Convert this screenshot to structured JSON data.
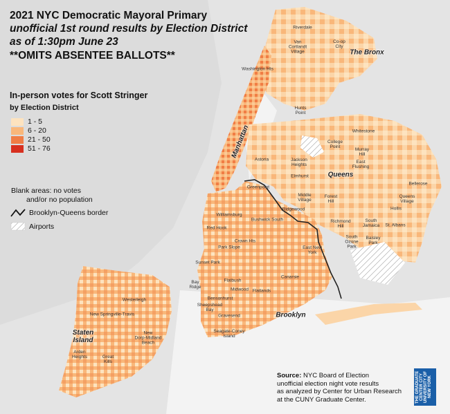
{
  "title": {
    "line1": "2021 NYC Democratic Mayoral Primary",
    "line2": "unofficial 1st round results by Election District",
    "line3": "as of 1:30pm June 23",
    "line4": "**OMITS ABSENTEE BALLOTS**"
  },
  "legend": {
    "title": "In-person votes for Scott Stringer",
    "subtitle": "by Election District",
    "bins": [
      {
        "label": "1 - 5",
        "color": "#fde3bf"
      },
      {
        "label": "6 - 20",
        "color": "#f9b77a"
      },
      {
        "label": "21 - 50",
        "color": "#f07d45"
      },
      {
        "label": "51 - 76",
        "color": "#d7301f"
      }
    ],
    "blank_note_1": "Blank areas: no votes",
    "blank_note_2": "and/or no population",
    "border_label": "Brooklyn-Queens border",
    "airports_label": "Airports"
  },
  "boroughs": {
    "manhattan": "Manhattan",
    "bronx": "The Bronx",
    "queens": "Queens",
    "brooklyn": "Brooklyn",
    "staten_island": "Staten\nIsland"
  },
  "places": {
    "riverdale": "Riverdale",
    "van_cortlandt": "Van\nCortlandt\nVillage",
    "co_op_city": "Co-op\nCity",
    "washington_hts": "Washington Hts",
    "hunts_point": "Hunts\nPoint",
    "whitestone": "Whitestone",
    "college_point": "College\nPoint",
    "murray_hill": "Murray\nHill",
    "east_flushing": "East\nFlushing",
    "astoria": "Astoria",
    "jackson_heights": "Jackson\nHeights",
    "elmhurst": "Elmhurst",
    "bellerose": "Bellerose",
    "queens_village": "Queens\nVillage",
    "hollis": "Hollis",
    "greenpoint": "Greenpoint",
    "middle_village": "Middle\nVillage",
    "forest_hills": "Forest\nHill",
    "ridgewood": "Ridgewood",
    "richmond_hill": "Richmond\nHill",
    "south_jamaica": "South\nJamaica",
    "st_albans": "St. Albans",
    "williamsburg": "Williamsburg",
    "bushwick": "Bushwick South",
    "red_hook": "Red Hook",
    "crown_hts": "Crown Hts",
    "east_new_york": "East New\nYork",
    "south_ozone_park": "South\nOzone\nPark",
    "baisley_park": "Baisley\nPark",
    "park_slope": "Park Slope",
    "sunset_park": "Sunset Park",
    "bay_ridge": "Bay\nRidge",
    "flatbush": "Flatbush",
    "canarsie": "Canarsie",
    "midwood": "Midwood",
    "flatlands": "Flatlands",
    "bensonhurst": "Bensonhurst",
    "gravesend": "Gravesend",
    "sheepshead": "Sheepshead\nBay",
    "seagate": "Seagate-Coney\nIsland",
    "westerleigh": "Westerleigh",
    "new_springville": "New Springville-Travis",
    "new_dorp": "New\nDorp-Midland\nBeach",
    "arden_heights": "Arden\nHeights",
    "great_kills": "Great\nKills"
  },
  "source": {
    "label": "Source:",
    "line1": "NYC Board of Election",
    "line2": "unofficial election night vote results",
    "line3": "as analyzed by Center for Urban Research",
    "line4": "at the CUNY Graduate Center."
  },
  "logo_text": "THE GRADUATE CENTER CITY UNIVERSITY OF NEW YORK"
}
